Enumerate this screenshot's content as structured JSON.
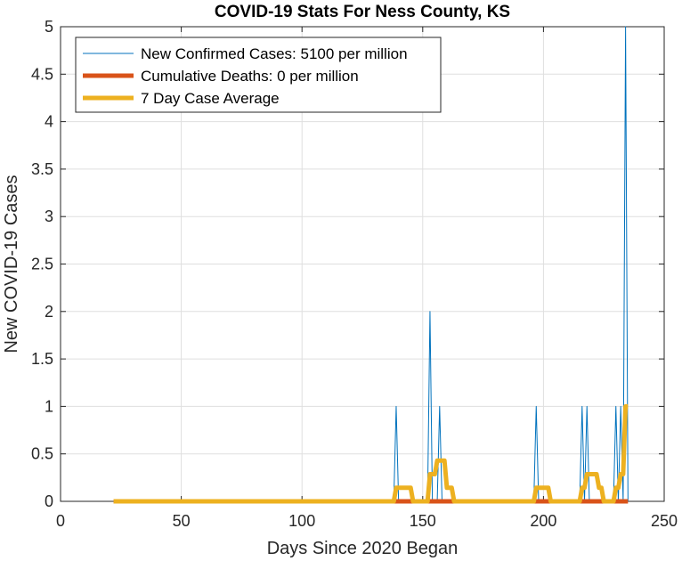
{
  "chart_data": {
    "type": "line",
    "title": "COVID-19 Stats For Ness County, KS",
    "xlabel": "Days Since 2020 Began",
    "ylabel": "New COVID-19 Cases",
    "xlim": [
      0,
      250
    ],
    "ylim": [
      0,
      5
    ],
    "xticks": [
      0,
      50,
      100,
      150,
      200,
      250
    ],
    "yticks": [
      0,
      0.5,
      1,
      1.5,
      2,
      2.5,
      3,
      3.5,
      4,
      4.5,
      5
    ],
    "grid": true,
    "legend_placement": "top-left",
    "series": [
      {
        "name": "New Confirmed Cases: 5100 per million",
        "color": "#0072BD",
        "line_width": "thin",
        "x": [
          22,
          138,
          139,
          140,
          152,
          153,
          154,
          156,
          157,
          158,
          196,
          197,
          198,
          215,
          216,
          217,
          218,
          219,
          229,
          230,
          231,
          232,
          233,
          234,
          235
        ],
        "y": [
          0,
          0,
          1,
          0,
          0,
          2,
          0,
          0,
          1,
          0,
          0,
          1,
          0,
          0,
          1,
          0,
          1,
          0,
          0,
          1,
          0,
          1,
          0,
          5,
          0
        ]
      },
      {
        "name": "Cumulative Deaths: 0 per million",
        "color": "#D95319",
        "line_width": "thick",
        "x": [
          22,
          235
        ],
        "y": [
          0,
          0
        ]
      },
      {
        "name": "7 Day Case Average",
        "color": "#EDB120",
        "line_width": "thick",
        "x": [
          22,
          138,
          139,
          145,
          146,
          152,
          153,
          155,
          156,
          159,
          160,
          162,
          163,
          196,
          197,
          202,
          203,
          215,
          216,
          217,
          218,
          222,
          223,
          224,
          225,
          229,
          230,
          231,
          232,
          233,
          234,
          235
        ],
        "y": [
          0,
          0,
          0.1429,
          0.1429,
          0,
          0,
          0.2857,
          0.2857,
          0.4286,
          0.4286,
          0.1429,
          0.1429,
          0,
          0,
          0.1429,
          0.1429,
          0,
          0,
          0.1429,
          0.1429,
          0.2857,
          0.2857,
          0.1429,
          0.1429,
          0,
          0,
          0.1429,
          0.1429,
          0.2857,
          0.2857,
          1.0,
          1.0
        ]
      }
    ]
  }
}
